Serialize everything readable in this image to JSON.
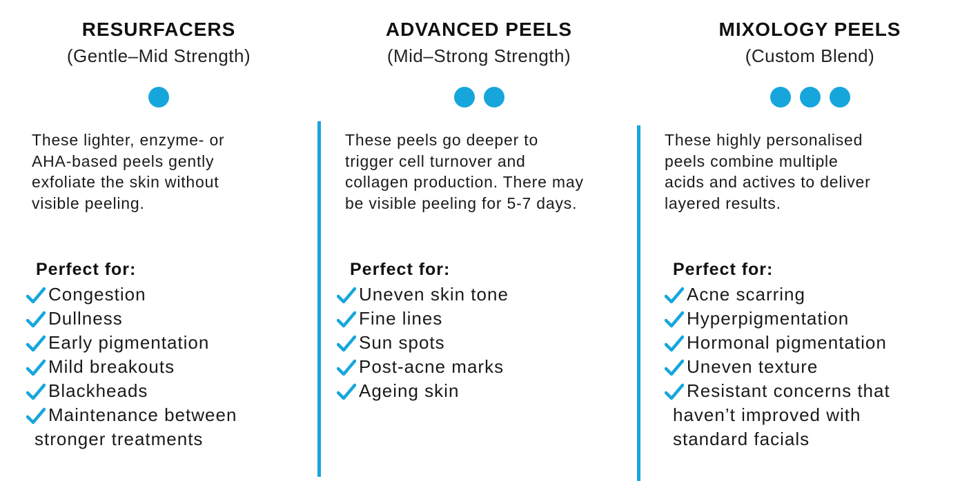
{
  "accent_color": "#16a6dc",
  "check_icon": "check-icon",
  "columns": [
    {
      "title": "RESURFACERS",
      "subtitle": "(Gentle–Mid Strength)",
      "dots": 1,
      "description": [
        "These lighter, enzyme- or",
        "AHA-based peels gently",
        "exfoliate the skin without",
        "visible peeling."
      ],
      "perfect_label": "Perfect for:",
      "items": [
        {
          "text": "Congestion"
        },
        {
          "text": "Dullness"
        },
        {
          "text": "Early pigmentation"
        },
        {
          "text": "Mild breakouts"
        },
        {
          "text": "Blackheads"
        },
        {
          "text": "Maintenance between",
          "continuation": [
            "stronger treatments"
          ]
        }
      ]
    },
    {
      "title": "ADVANCED PEELS",
      "subtitle": "(Mid–Strong Strength)",
      "dots": 2,
      "description": [
        "These peels go deeper to",
        "trigger cell turnover and",
        "collagen production. There may",
        "be visible peeling for 5-7 days."
      ],
      "perfect_label": "Perfect for:",
      "items": [
        {
          "text": "Uneven skin tone"
        },
        {
          "text": "Fine lines"
        },
        {
          "text": "Sun spots"
        },
        {
          "text": "Post-acne marks"
        },
        {
          "text": "Ageing skin"
        }
      ]
    },
    {
      "title": "MIXOLOGY PEELS",
      "subtitle": "(Custom Blend)",
      "dots": 3,
      "description": [
        "These highly personalised",
        "peels combine multiple",
        "acids and actives to deliver",
        "layered results."
      ],
      "perfect_label": "Perfect for:",
      "items": [
        {
          "text": "Acne scarring"
        },
        {
          "text": "Hyperpigmentation"
        },
        {
          "text": "Hormonal pigmentation"
        },
        {
          "text": "Uneven texture"
        },
        {
          "text": "Resistant concerns that",
          "continuation": [
            "haven’t improved with",
            "standard facials"
          ]
        }
      ]
    }
  ]
}
